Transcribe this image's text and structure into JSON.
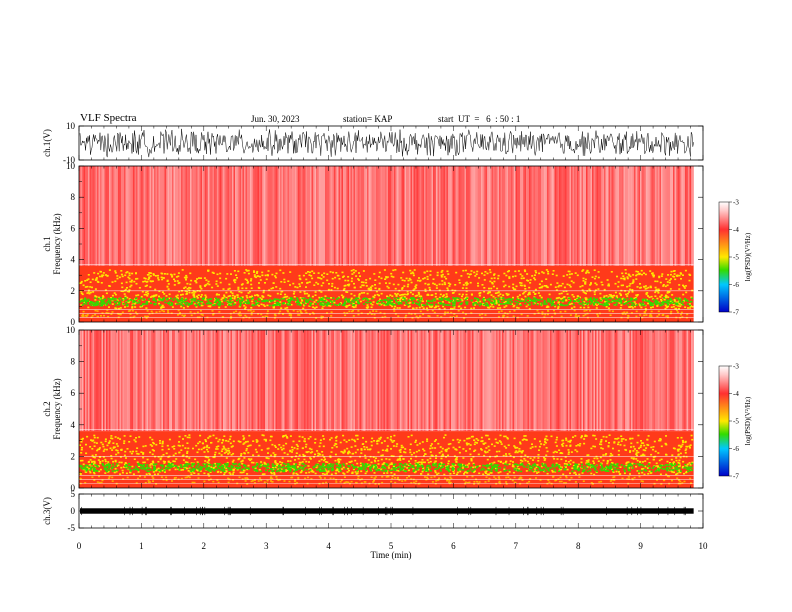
{
  "header": {
    "title": "VLF Spectra",
    "date": "Jun. 30, 2023",
    "station": "station= KAP",
    "start": "start  UT  =   6  : 50 : 1"
  },
  "chart_data": [
    {
      "type": "line",
      "ylabel": "ch.1(V)",
      "ylim": [
        -10,
        10
      ],
      "yticks": [
        "10",
        "-10"
      ],
      "description_series": "dense waveform between roughly -10 and 10 V"
    },
    {
      "type": "heatmap",
      "ylabel_line1": "ch.1",
      "ylabel_line2": "Frequency  (kHz)",
      "ylim": [
        0,
        10
      ],
      "yticks": [
        "0",
        "2",
        "4",
        "6",
        "8",
        "10"
      ],
      "colorbar": {
        "label": "log(PSD)(V²/Hz)",
        "range": [
          -7,
          -3
        ],
        "ticks": [
          "-3",
          "-4",
          "-5",
          "-6",
          "-7"
        ]
      },
      "bands_khz": [
        {
          "range": [
            0.0,
            0.8
          ],
          "level": "-3.5"
        },
        {
          "range": [
            0.8,
            1.8
          ],
          "level": "-5.0"
        },
        {
          "range": [
            1.8,
            3.6
          ],
          "level": "-4.2"
        },
        {
          "range": [
            3.6,
            10.0
          ],
          "level": "-3.2"
        }
      ]
    },
    {
      "type": "heatmap",
      "ylabel_line1": "ch.2",
      "ylabel_line2": "Frequency  (kHz)",
      "ylim": [
        0,
        10
      ],
      "yticks": [
        "0",
        "2",
        "4",
        "6",
        "8",
        "10"
      ],
      "colorbar": {
        "label": "log(PSD)(V²/Hz)",
        "range": [
          -7,
          -3
        ],
        "ticks": [
          "-3",
          "-4",
          "-5",
          "-6",
          "-7"
        ]
      },
      "bands_khz": [
        {
          "range": [
            0.0,
            0.8
          ],
          "level": "-3.5"
        },
        {
          "range": [
            0.8,
            2.0
          ],
          "level": "-5.0"
        },
        {
          "range": [
            2.0,
            3.5
          ],
          "level": "-4.2"
        },
        {
          "range": [
            3.5,
            10.0
          ],
          "level": "-3.2"
        }
      ]
    },
    {
      "type": "line",
      "ylabel": "ch.3(V)",
      "ylim": [
        -5,
        5
      ],
      "yticks": [
        "5",
        "0",
        "-5"
      ],
      "description_series": "thick flat band near 0 V"
    }
  ],
  "xaxis": {
    "xlabel": "Time  (min)",
    "xlim": [
      0,
      10
    ],
    "ticks": [
      "0",
      "1",
      "2",
      "3",
      "4",
      "5",
      "6",
      "7",
      "8",
      "9",
      "10"
    ],
    "data_end": 9.85
  },
  "colors": {
    "spec_bg": "#ff2828",
    "yellow": "#ffe800",
    "green": "#32dc00",
    "axis": "#000000"
  }
}
